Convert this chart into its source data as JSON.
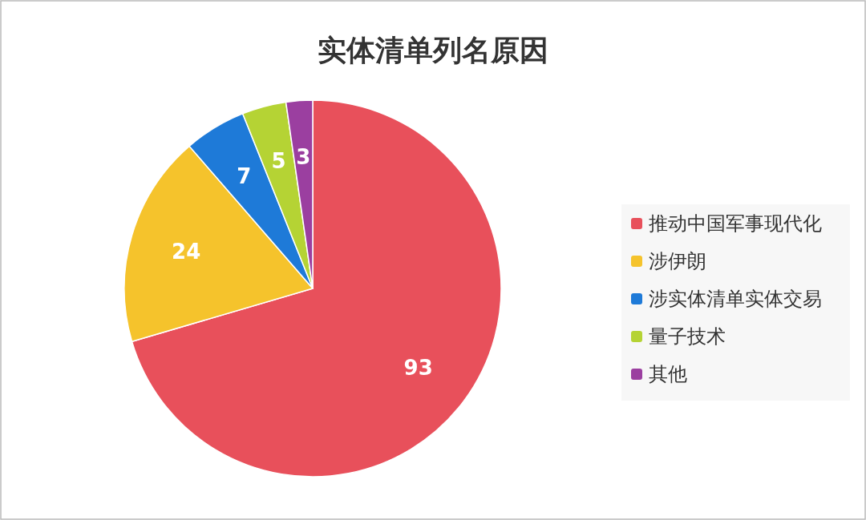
{
  "chart_data": {
    "type": "pie",
    "title": "实体清单列名原因",
    "categories": [
      "推动中国军事现代化",
      "涉伊朗",
      "涉实体清单实体交易",
      "量子技术",
      "其他"
    ],
    "values": [
      93,
      24,
      7,
      5,
      3
    ],
    "colors": [
      "#e8505b",
      "#f5c32c",
      "#1e7ad8",
      "#b5d334",
      "#9b3fa0"
    ],
    "data_labels": true,
    "legend": "right"
  }
}
